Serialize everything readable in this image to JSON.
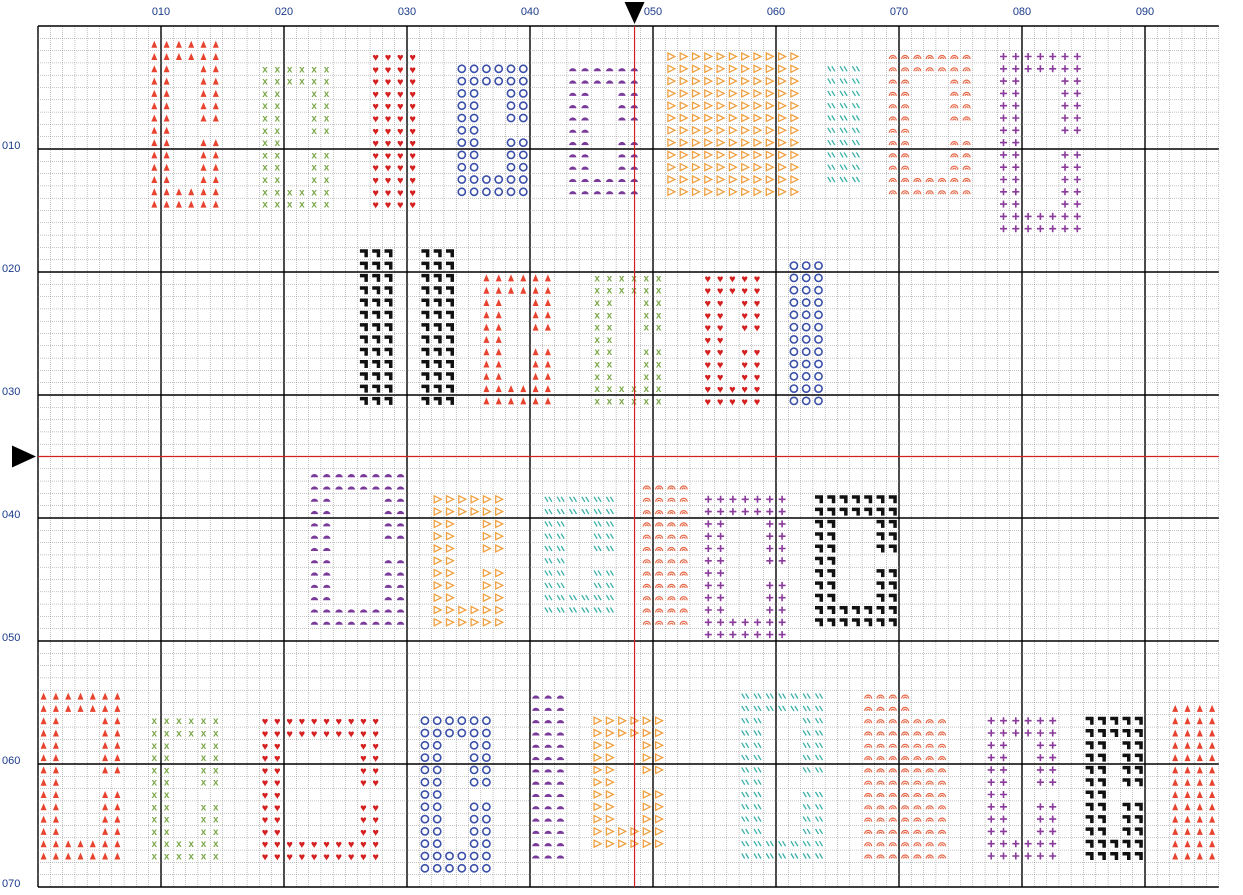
{
  "top_labels": [
    "010",
    "020",
    "030",
    "040",
    "050",
    "060",
    "070",
    "080",
    "090"
  ],
  "left_labels": [
    "010",
    "020",
    "030",
    "040",
    "050",
    "060",
    "070"
  ]
}
